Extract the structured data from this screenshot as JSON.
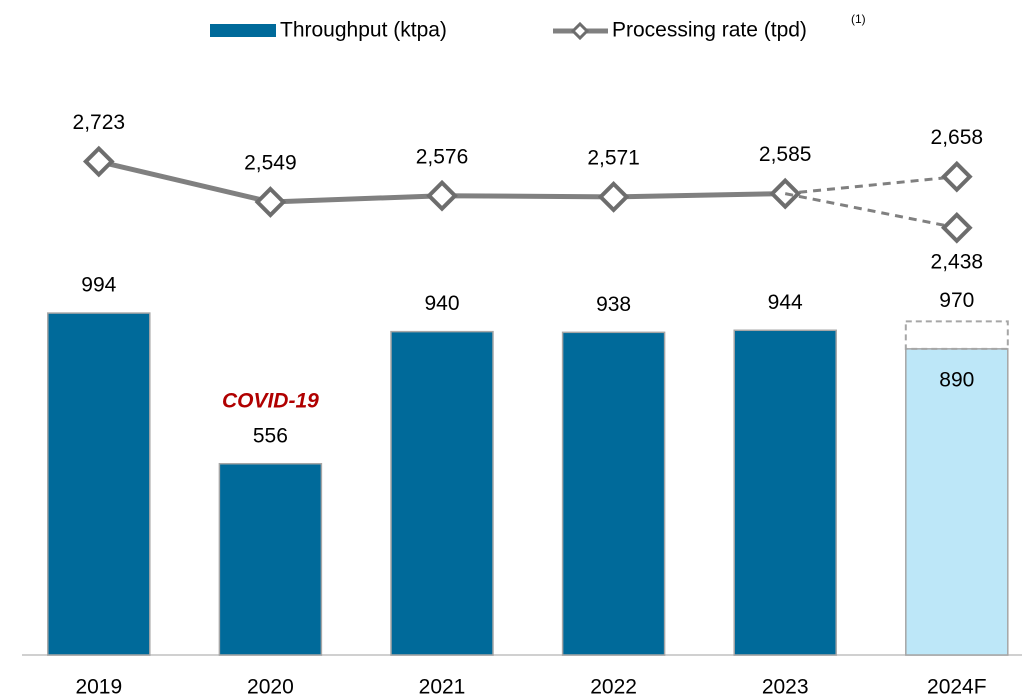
{
  "chart_data": {
    "type": "bar-line",
    "categories": [
      "2019",
      "2020",
      "2021",
      "2022",
      "2023",
      "2024F"
    ],
    "annotations": [
      {
        "text": "COVID-19",
        "category": "2020",
        "color": "#b00000"
      }
    ],
    "legend_note": "(1)",
    "ylim": [
      0,
      1000
    ],
    "y2lim": [
      600,
      2080
    ],
    "series": [
      {
        "name": "Throughput (ktpa)",
        "type": "bar",
        "color": "#006a9a",
        "colors": [
          "#006a9a",
          "#006a9a",
          "#006a9a",
          "#006a9a",
          "#006a9a",
          "#bde7f8"
        ],
        "values": [
          994,
          556,
          940,
          938,
          944,
          890
        ]
      },
      {
        "type": "bar-range-top",
        "values": [
          null,
          null,
          null,
          null,
          null,
          970
        ]
      },
      {
        "name": "Processing rate (tpd)",
        "type": "line",
        "axis": "y2",
        "color": "#808080",
        "values": [
          2723,
          2549,
          2576,
          2571,
          2585,
          2658
        ],
        "value_labels": [
          "2,723",
          "2,549",
          "2,576",
          "2,571",
          "2,585",
          "2,658"
        ]
      },
      {
        "type": "line-branch",
        "axis": "y2",
        "color": "#808080",
        "values": [
          null,
          null,
          null,
          null,
          null,
          2438
        ],
        "value_labels": [
          null,
          null,
          null,
          null,
          null,
          "2,438"
        ]
      }
    ]
  }
}
